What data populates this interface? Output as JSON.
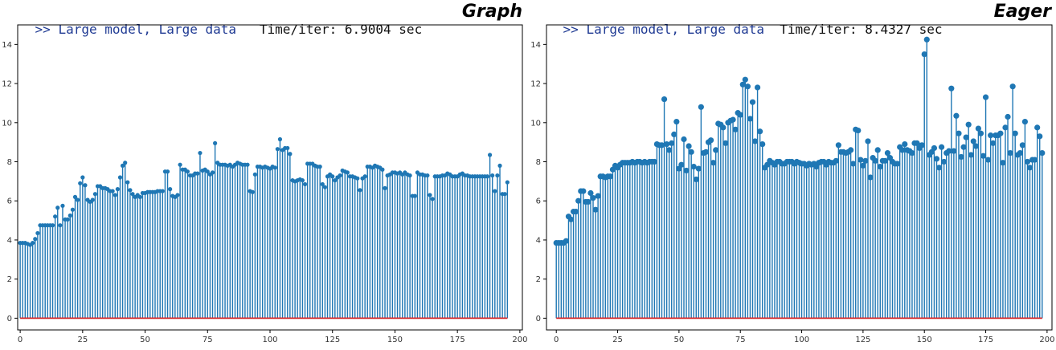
{
  "panels": [
    {
      "prompt": ">>",
      "subtitle": "Large model, Large data",
      "time_text": "Time/iter: 6.9004 sec",
      "mode": "Graph"
    },
    {
      "prompt": ">>",
      "subtitle": "Large model, Large data",
      "time_text": "Time/iter: 8.4327 sec",
      "mode": "Eager"
    }
  ],
  "colors": {
    "stem": "#1f77b4",
    "baseline": "#d62728",
    "axes": "#000000"
  },
  "chart_data": [
    {
      "type": "stem",
      "title": "Graph",
      "xlim": [
        -1,
        201
      ],
      "ylim": [
        -0.6,
        15
      ],
      "xticks": [
        0,
        25,
        50,
        75,
        100,
        125,
        150,
        175,
        200
      ],
      "yticks": [
        0,
        2,
        4,
        6,
        8,
        10,
        12,
        14
      ],
      "baseline": 0,
      "marker_size": "small",
      "values": [
        3.85,
        3.85,
        3.85,
        3.8,
        3.75,
        3.85,
        4.05,
        4.35,
        4.75,
        4.75,
        4.75,
        4.75,
        4.75,
        4.75,
        5.2,
        5.65,
        4.75,
        5.75,
        5.05,
        5.05,
        5.25,
        5.55,
        6.2,
        6.05,
        6.9,
        7.2,
        6.8,
        6.05,
        5.95,
        6.05,
        6.35,
        6.75,
        6.75,
        6.65,
        6.65,
        6.6,
        6.5,
        6.5,
        6.3,
        6.6,
        7.2,
        7.8,
        7.95,
        6.95,
        6.55,
        6.35,
        6.2,
        6.3,
        6.2,
        6.4,
        6.4,
        6.45,
        6.45,
        6.45,
        6.45,
        6.5,
        6.5,
        6.5,
        7.5,
        7.5,
        6.6,
        6.25,
        6.2,
        6.3,
        7.85,
        7.6,
        7.6,
        7.5,
        7.3,
        7.3,
        7.4,
        7.4,
        8.45,
        7.55,
        7.6,
        7.5,
        7.35,
        7.45,
        8.95,
        7.95,
        7.85,
        7.85,
        7.85,
        7.8,
        7.85,
        7.75,
        7.85,
        7.95,
        7.9,
        7.85,
        7.85,
        7.85,
        6.5,
        6.45,
        7.35,
        7.75,
        7.75,
        7.7,
        7.75,
        7.7,
        7.65,
        7.75,
        7.7,
        8.65,
        9.15,
        8.6,
        8.7,
        8.7,
        8.4,
        7.05,
        7.0,
        7.05,
        7.1,
        7.05,
        6.85,
        7.9,
        7.9,
        7.9,
        7.8,
        7.75,
        7.75,
        6.85,
        6.7,
        7.25,
        7.35,
        7.25,
        7.05,
        7.2,
        7.3,
        7.55,
        7.5,
        7.45,
        7.25,
        7.25,
        7.2,
        7.15,
        6.55,
        7.15,
        7.25,
        7.75,
        7.75,
        7.7,
        7.8,
        7.75,
        7.7,
        7.6,
        6.65,
        7.3,
        7.35,
        7.45,
        7.45,
        7.4,
        7.45,
        7.35,
        7.45,
        7.35,
        7.3,
        6.25,
        6.25,
        7.45,
        7.35,
        7.35,
        7.3,
        7.3,
        6.3,
        6.1,
        7.25,
        7.25,
        7.25,
        7.3,
        7.3,
        7.4,
        7.35,
        7.25,
        7.25,
        7.25,
        7.35,
        7.4,
        7.3,
        7.3,
        7.25,
        7.25,
        7.25,
        7.25,
        7.25,
        7.25,
        7.25,
        7.25,
        8.35,
        7.3,
        6.5,
        7.3,
        7.8,
        6.35,
        6.35,
        6.95
      ]
    },
    {
      "type": "stem",
      "title": "Eager",
      "xlim": [
        -4,
        202
      ],
      "ylim": [
        -0.6,
        15
      ],
      "xticks": [
        0,
        25,
        50,
        75,
        100,
        125,
        150,
        175,
        200
      ],
      "yticks": [
        0,
        2,
        4,
        6,
        8,
        10,
        12,
        14
      ],
      "baseline": 0,
      "marker_size": "large",
      "values": [
        3.85,
        3.85,
        3.85,
        3.85,
        3.95,
        5.2,
        5.05,
        5.45,
        5.45,
        6.0,
        6.5,
        6.5,
        5.95,
        5.95,
        6.4,
        6.15,
        5.55,
        6.25,
        7.25,
        7.25,
        7.2,
        7.25,
        7.25,
        7.6,
        7.8,
        7.7,
        7.85,
        7.95,
        7.95,
        7.95,
        7.95,
        8.0,
        7.95,
        8.0,
        8.0,
        7.95,
        8.0,
        7.95,
        8.0,
        8.0,
        8.0,
        8.9,
        8.85,
        8.85,
        11.2,
        8.9,
        8.6,
        8.95,
        9.4,
        10.05,
        7.65,
        7.85,
        9.15,
        7.55,
        8.8,
        8.5,
        7.75,
        7.1,
        7.65,
        10.8,
        8.45,
        8.5,
        9.0,
        9.1,
        7.95,
        8.6,
        9.95,
        9.9,
        9.75,
        8.95,
        10.0,
        10.1,
        10.15,
        9.65,
        10.5,
        10.4,
        11.95,
        12.2,
        11.85,
        10.2,
        11.05,
        9.05,
        11.8,
        9.55,
        8.9,
        7.7,
        7.85,
        8.05,
        7.95,
        7.85,
        8.0,
        8.0,
        7.9,
        7.9,
        8.0,
        8.0,
        8.0,
        7.9,
        8.0,
        7.95,
        7.9,
        7.9,
        7.8,
        7.9,
        7.85,
        7.9,
        7.75,
        7.95,
        8.0,
        8.0,
        7.85,
        8.0,
        7.95,
        7.95,
        8.05,
        8.85,
        8.5,
        8.5,
        8.45,
        8.5,
        8.6,
        7.9,
        9.65,
        9.6,
        8.1,
        7.8,
        8.05,
        9.05,
        7.2,
        8.2,
        8.05,
        8.6,
        7.75,
        8.05,
        8.05,
        8.45,
        8.2,
        8.0,
        7.9,
        7.9,
        8.75,
        8.6,
        8.9,
        8.6,
        8.55,
        8.45,
        8.95,
        8.95,
        8.7,
        8.85,
        13.5,
        14.25,
        8.35,
        8.5,
        8.7,
        8.15,
        7.7,
        8.75,
        8.0,
        8.45,
        8.55,
        11.75,
        8.55,
        10.35,
        9.45,
        8.25,
        8.75,
        9.25,
        9.9,
        8.35,
        9.05,
        8.8,
        9.7,
        9.45,
        8.3,
        11.3,
        8.1,
        9.35,
        8.95,
        9.35,
        9.35,
        9.45,
        7.95,
        9.75,
        10.3,
        8.45,
        11.85,
        9.45,
        8.35,
        8.45,
        8.85,
        10.05,
        8.0,
        7.7,
        8.1,
        8.1,
        9.75,
        9.3,
        8.45
      ]
    }
  ]
}
